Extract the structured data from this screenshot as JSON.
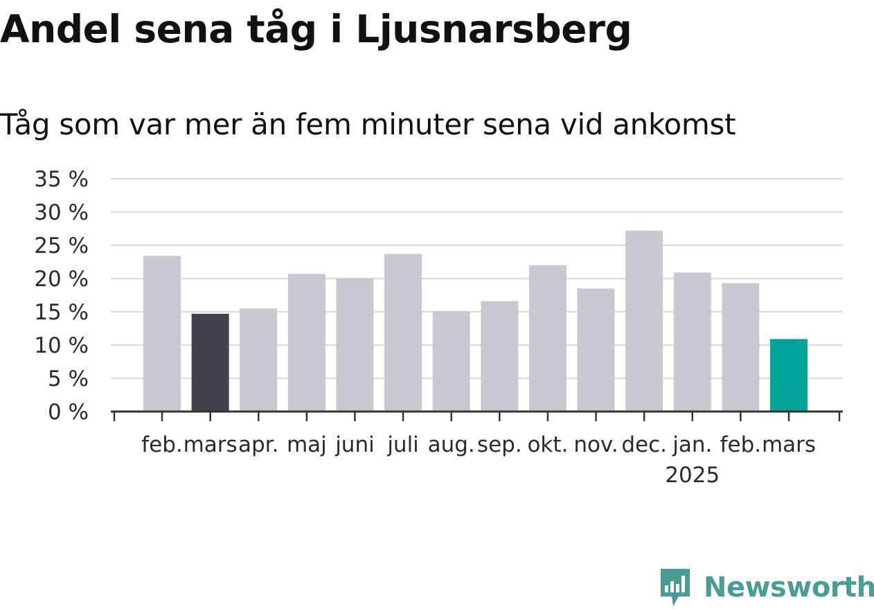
{
  "chart_data": {
    "type": "bar",
    "title": "Andel sena tåg i Ljusnarsberg",
    "subtitle": "Tåg som var mer än fem minuter sena vid ankomst",
    "categories": [
      "feb.",
      "mars",
      "apr.",
      "maj",
      "juni",
      "juli",
      "aug.",
      "sep.",
      "okt.",
      "nov.",
      "dec.",
      "jan.",
      "feb.",
      "mars"
    ],
    "year_labels": [
      "",
      "",
      "",
      "",
      "",
      "",
      "",
      "",
      "",
      "",
      "",
      "2025",
      "",
      ""
    ],
    "values": [
      23.4,
      14.7,
      15.5,
      20.7,
      20.0,
      23.7,
      15.1,
      16.6,
      22.0,
      18.5,
      27.2,
      20.9,
      19.3,
      10.9
    ],
    "highlight": {
      "1": "#44414f",
      "13": "#00a398"
    },
    "default_color": "#c8c7d2",
    "ylim": [
      0,
      35
    ],
    "yticks": [
      0,
      5,
      10,
      15,
      20,
      25,
      30,
      35
    ],
    "ytick_suffix": " %",
    "grid": true,
    "xlabel": "",
    "ylabel": ""
  },
  "logo": {
    "text": "Newsworthy",
    "icon": "newsworthy-logo-icon",
    "color": "#4a9d97"
  }
}
